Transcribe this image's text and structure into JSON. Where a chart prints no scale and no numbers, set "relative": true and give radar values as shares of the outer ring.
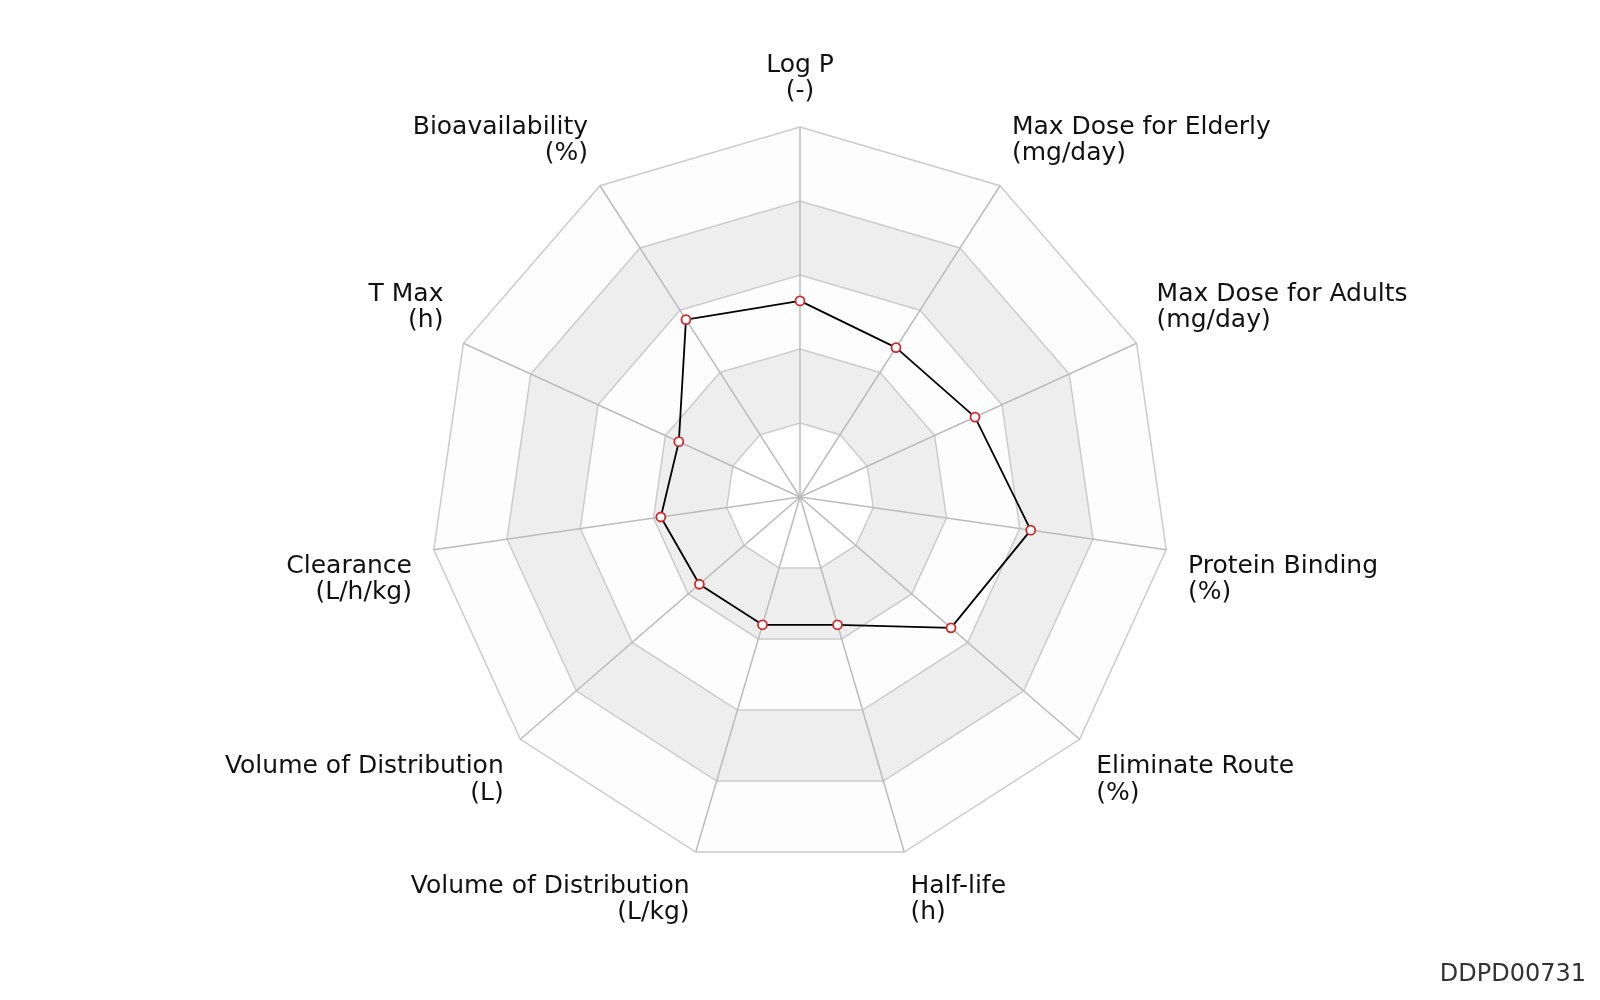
{
  "chart_data": {
    "type": "radar",
    "relative": true,
    "categories": [
      "Log P\n(-)",
      "Max Dose for Elderly\n(mg/day)",
      "Max Dose for Adults\n(mg/day)",
      "Protein Binding\n(%)",
      "Eliminate Route\n(%)",
      "Half-life\n(h)",
      "Volume of Distribution\n(L/kg)",
      "Volume of Distribution\n(L)",
      "Clearance\n(L/h/kg)",
      "T Max\n(h)",
      "Bioavailability\n(%)"
    ],
    "series": [
      {
        "color": "#000000",
        "values": [
          0.53,
          0.48,
          0.52,
          0.63,
          0.54,
          0.36,
          0.36,
          0.36,
          0.38,
          0.36,
          0.57
        ]
      }
    ],
    "grid": true,
    "marker": "circle",
    "line_style": "solid",
    "annotations": [
      "DDPD00731"
    ]
  }
}
